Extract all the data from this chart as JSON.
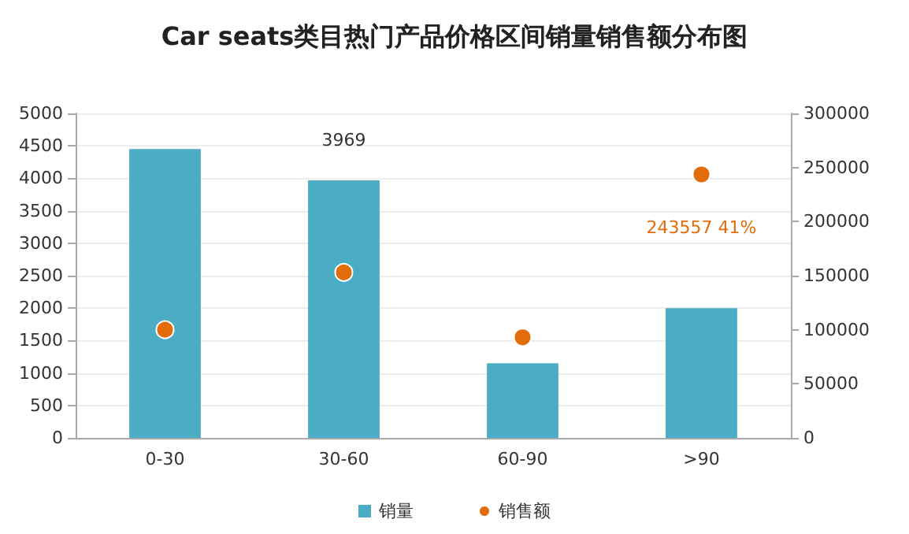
{
  "chart_data": {
    "type": "bar",
    "title": "Car seats类目热门产品价格区间销量销售额分布图",
    "categories": [
      "0-30",
      "30-60",
      "60-90",
      ">90"
    ],
    "series": [
      {
        "name": "销量",
        "color": "#4bacc6",
        "values": [
          4450,
          3969,
          1150,
          2000
        ],
        "value_labels": [
          null,
          "3969",
          null,
          null
        ]
      },
      {
        "name": "销售额",
        "type": "scatter",
        "axis": "y2",
        "color": "#e36c0a",
        "values": [
          100000,
          153000,
          93000,
          243557
        ],
        "value_labels": [
          null,
          null,
          null,
          "243557 41%"
        ]
      }
    ],
    "ylim": [
      0,
      5000
    ],
    "yticks": [
      0,
      500,
      1000,
      1500,
      2000,
      2500,
      3000,
      3500,
      4000,
      4500,
      5000
    ],
    "y2lim": [
      0,
      300000
    ],
    "y2ticks": [
      0,
      50000,
      100000,
      150000,
      200000,
      250000,
      300000
    ],
    "grid": "y",
    "legend": "bottom",
    "marker": "circle"
  }
}
